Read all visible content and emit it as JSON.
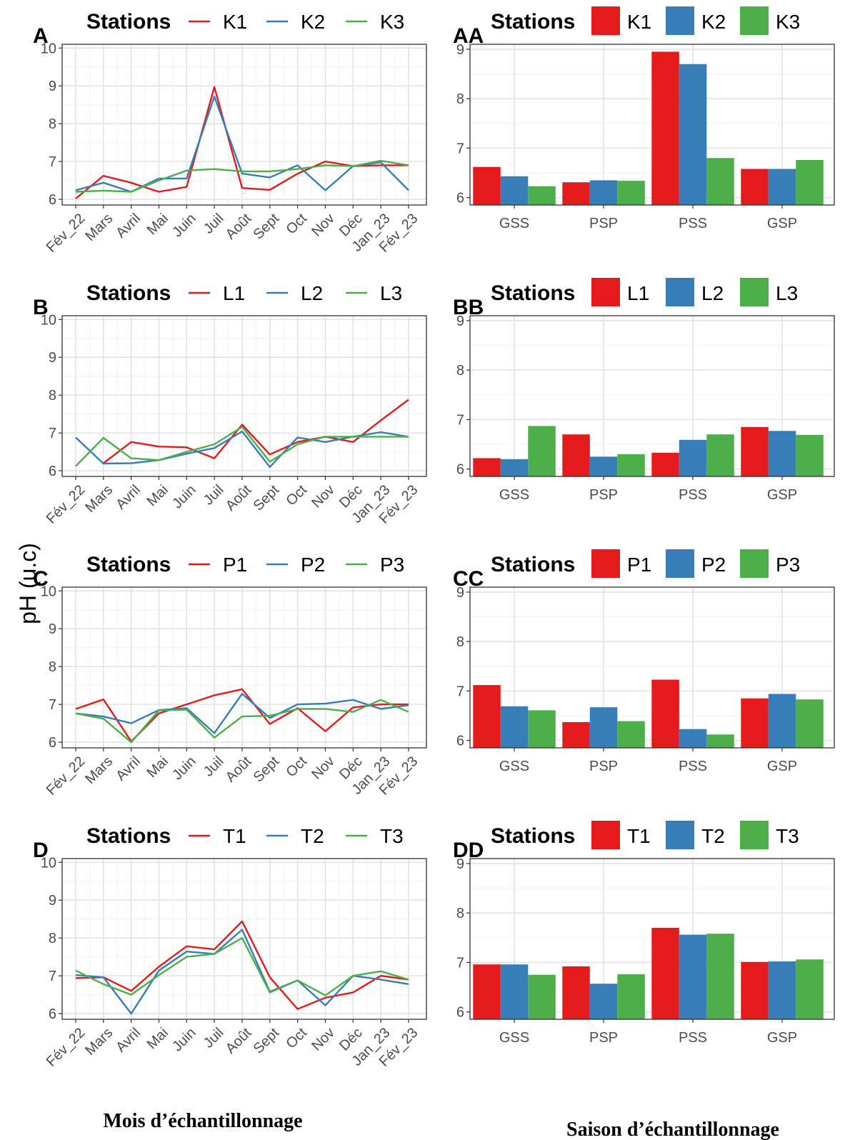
{
  "ylabel": "pH (u.c)",
  "xlabel_left": "Mois d’échantillonnage",
  "xlabel_right": "Saison d’échantillonnage",
  "colors": {
    "s1": "#e41a1c",
    "s2": "#377eb8",
    "s3": "#4daf4a"
  },
  "chart_data": [
    {
      "panel": "A",
      "type": "line",
      "legend_title": "Stations",
      "ylim": [
        5.85,
        10.1
      ],
      "yticks": [
        6,
        7,
        8,
        9,
        10
      ],
      "categories": [
        "Fév_22",
        "Mars",
        "Avril",
        "Mai",
        "Juin",
        "Juil",
        "Août",
        "Sept",
        "Oct",
        "Nov",
        "Déc",
        "Jan_23",
        "Fév_23"
      ],
      "series": [
        {
          "name": "K1",
          "values": [
            6.02,
            6.62,
            6.44,
            6.2,
            6.33,
            8.97,
            6.3,
            6.25,
            6.68,
            7.0,
            6.88,
            6.9,
            6.9
          ]
        },
        {
          "name": "K2",
          "values": [
            6.24,
            6.44,
            6.2,
            6.55,
            6.55,
            8.72,
            6.68,
            6.58,
            6.9,
            6.24,
            6.88,
            6.98,
            6.24
          ]
        },
        {
          "name": "K3",
          "values": [
            6.2,
            6.23,
            6.2,
            6.5,
            6.76,
            6.8,
            6.74,
            6.74,
            6.8,
            6.9,
            6.88,
            7.02,
            6.9
          ]
        }
      ]
    },
    {
      "panel": "AA",
      "type": "bar",
      "legend_title": "Stations",
      "ylim": [
        5.85,
        9.1
      ],
      "yticks": [
        6,
        7,
        8,
        9
      ],
      "categories": [
        "GSS",
        "PSP",
        "PSS",
        "GSP"
      ],
      "series": [
        {
          "name": "K1",
          "values": [
            6.62,
            6.31,
            8.95,
            6.58
          ]
        },
        {
          "name": "K2",
          "values": [
            6.43,
            6.35,
            8.7,
            6.58
          ]
        },
        {
          "name": "K3",
          "values": [
            6.23,
            6.34,
            6.8,
            6.76
          ]
        }
      ]
    },
    {
      "panel": "B",
      "type": "line",
      "legend_title": "Stations",
      "ylim": [
        5.85,
        10.1
      ],
      "yticks": [
        6,
        7,
        8,
        9,
        10
      ],
      "categories": [
        "Fév_22",
        "Mars",
        "Avril",
        "Mai",
        "Juin",
        "Juil",
        "Août",
        "Sept",
        "Oct",
        "Nov",
        "Déc",
        "Jan_23",
        "Fév_23"
      ],
      "series": [
        {
          "name": "L1",
          "values": [
            null,
            6.2,
            6.76,
            6.64,
            6.62,
            6.33,
            7.22,
            6.43,
            6.76,
            6.9,
            6.76,
            7.33,
            7.88
          ]
        },
        {
          "name": "L2",
          "values": [
            6.88,
            6.19,
            6.2,
            6.28,
            6.45,
            6.6,
            7.04,
            6.1,
            6.88,
            6.76,
            6.9,
            7.02,
            6.9
          ]
        },
        {
          "name": "L3",
          "values": [
            6.12,
            6.87,
            6.33,
            6.28,
            6.5,
            6.7,
            7.16,
            6.24,
            6.7,
            6.9,
            6.9,
            6.9,
            6.9
          ]
        }
      ]
    },
    {
      "panel": "BB",
      "type": "bar",
      "legend_title": "Stations",
      "ylim": [
        5.85,
        9.1
      ],
      "yticks": [
        6,
        7,
        8,
        9
      ],
      "categories": [
        "GSS",
        "PSP",
        "PSS",
        "GSP"
      ],
      "series": [
        {
          "name": "L1",
          "values": [
            6.22,
            6.7,
            6.33,
            6.85
          ]
        },
        {
          "name": "L2",
          "values": [
            6.2,
            6.25,
            6.59,
            6.77
          ]
        },
        {
          "name": "L3",
          "values": [
            6.87,
            6.3,
            6.7,
            6.69
          ]
        }
      ]
    },
    {
      "panel": "C",
      "type": "line",
      "legend_title": "Stations",
      "ylim": [
        5.85,
        10.1
      ],
      "yticks": [
        6,
        7,
        8,
        9,
        10
      ],
      "categories": [
        "Fév_22",
        "Mars",
        "Avril",
        "Mai",
        "Juin",
        "Juil",
        "Août",
        "Sept",
        "Oct",
        "Nov",
        "Déc",
        "Jan_23",
        "Fév_23"
      ],
      "series": [
        {
          "name": "P1",
          "values": [
            6.88,
            7.13,
            6.02,
            6.76,
            7.0,
            7.24,
            7.4,
            6.48,
            6.9,
            6.29,
            6.92,
            7.0,
            7.0
          ]
        },
        {
          "name": "P2",
          "values": [
            6.76,
            6.68,
            6.5,
            6.85,
            6.9,
            6.24,
            7.28,
            6.64,
            7.0,
            7.02,
            7.12,
            6.88,
            6.98
          ]
        },
        {
          "name": "P3",
          "values": [
            6.76,
            6.62,
            6.0,
            6.84,
            6.86,
            6.12,
            6.68,
            6.7,
            6.88,
            6.88,
            6.8,
            7.12,
            6.8
          ]
        }
      ]
    },
    {
      "panel": "CC",
      "type": "bar",
      "legend_title": "Stations",
      "ylim": [
        5.85,
        9.1
      ],
      "yticks": [
        6,
        7,
        8,
        9
      ],
      "categories": [
        "GSS",
        "PSP",
        "PSS",
        "GSP"
      ],
      "series": [
        {
          "name": "P1",
          "values": [
            7.12,
            6.37,
            7.23,
            6.85
          ]
        },
        {
          "name": "P2",
          "values": [
            6.69,
            6.67,
            6.23,
            6.94
          ]
        },
        {
          "name": "P3",
          "values": [
            6.61,
            6.39,
            6.12,
            6.83
          ]
        }
      ]
    },
    {
      "panel": "D",
      "type": "line",
      "legend_title": "Stations",
      "ylim": [
        5.85,
        10.1
      ],
      "yticks": [
        6,
        7,
        8,
        9,
        10
      ],
      "categories": [
        "Fév_22",
        "Mars",
        "Avril",
        "Mai",
        "Juin",
        "Juil",
        "Août",
        "Sept",
        "Oct",
        "Nov",
        "Déc",
        "Jan_23",
        "Fév_23"
      ],
      "series": [
        {
          "name": "T1",
          "values": [
            6.94,
            6.96,
            6.6,
            7.24,
            7.78,
            7.7,
            8.44,
            6.96,
            6.12,
            6.42,
            6.56,
            7.0,
            6.9
          ]
        },
        {
          "name": "T2",
          "values": [
            7.02,
            6.96,
            6.0,
            7.14,
            7.64,
            7.58,
            8.22,
            6.58,
            6.88,
            6.22,
            7.0,
            6.9,
            6.78
          ]
        },
        {
          "name": "T3",
          "values": [
            7.14,
            6.78,
            6.5,
            7.02,
            7.5,
            7.58,
            8.0,
            6.56,
            6.88,
            6.48,
            7.0,
            7.12,
            6.9
          ]
        }
      ]
    },
    {
      "panel": "DD",
      "type": "bar",
      "legend_title": "Stations",
      "ylim": [
        5.85,
        9.1
      ],
      "yticks": [
        6,
        7,
        8,
        9
      ],
      "categories": [
        "GSS",
        "PSP",
        "PSS",
        "GSP"
      ],
      "series": [
        {
          "name": "T1",
          "values": [
            6.96,
            6.92,
            7.7,
            7.01
          ]
        },
        {
          "name": "T2",
          "values": [
            6.96,
            6.57,
            7.56,
            7.02
          ]
        },
        {
          "name": "T3",
          "values": [
            6.75,
            6.76,
            7.58,
            7.06
          ]
        }
      ]
    }
  ]
}
